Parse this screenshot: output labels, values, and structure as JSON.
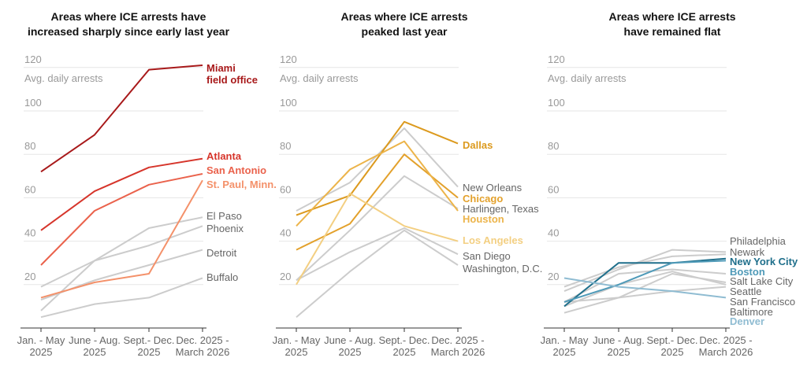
{
  "chart_data": [
    {
      "type": "line",
      "title": "Areas where ICE arrests have increased sharply since early last year",
      "title_lines": [
        "Areas where ICE arrests have",
        "increased sharply since early last year"
      ],
      "ylabel": "Avg. daily arrests",
      "ylim": [
        0,
        120
      ],
      "yticks": [
        "20",
        "40",
        "60",
        "80",
        "100",
        "120"
      ],
      "categories": [
        [
          "Jan. - May",
          "2025"
        ],
        [
          "June - Aug.",
          "2025"
        ],
        [
          "Sept.- Dec.",
          "2025"
        ],
        [
          "Dec. 2025 -",
          "March 2026"
        ]
      ],
      "grid": true,
      "series": [
        {
          "name": "Miami field office",
          "label_lines": [
            "Miami",
            "field office"
          ],
          "values": [
            72,
            89,
            119,
            121
          ],
          "color": "#a8191a",
          "highlight": true
        },
        {
          "name": "Atlanta",
          "label_lines": [
            "Atlanta"
          ],
          "values": [
            45,
            63,
            74,
            78
          ],
          "color": "#d6352b",
          "highlight": true
        },
        {
          "name": "San Antonio",
          "label_lines": [
            "San Antonio"
          ],
          "values": [
            29,
            54,
            66,
            71
          ],
          "color": "#ea624c",
          "highlight": true
        },
        {
          "name": "St. Paul, Minn.",
          "label_lines": [
            "St. Paul, Minn."
          ],
          "values": [
            14,
            21,
            25,
            68
          ],
          "color": "#f4916a",
          "highlight": true
        },
        {
          "name": "El Paso",
          "label_lines": [
            "El Paso"
          ],
          "values": [
            8,
            31,
            46,
            51
          ],
          "color": "#cccccc",
          "highlight": false
        },
        {
          "name": "Phoenix",
          "label_lines": [
            "Phoenix"
          ],
          "values": [
            19,
            31,
            38,
            47
          ],
          "color": "#cccccc",
          "highlight": false
        },
        {
          "name": "Detroit",
          "label_lines": [
            "Detroit"
          ],
          "values": [
            13,
            22,
            29,
            36
          ],
          "color": "#cccccc",
          "highlight": false
        },
        {
          "name": "Buffalo",
          "label_lines": [
            "Buffalo"
          ],
          "values": [
            5,
            11,
            14,
            23
          ],
          "color": "#cccccc",
          "highlight": false
        }
      ]
    },
    {
      "type": "line",
      "title": "Areas where ICE arrests peaked last year",
      "title_lines": [
        "Areas where ICE arrests",
        "peaked last year"
      ],
      "ylabel": "Avg. daily arrests",
      "ylim": [
        0,
        120
      ],
      "yticks": [
        "20",
        "40",
        "60",
        "80",
        "100",
        "120"
      ],
      "categories": [
        [
          "Jan. - May",
          "2025"
        ],
        [
          "June - Aug.",
          "2025"
        ],
        [
          "Sept.- Dec.",
          "2025"
        ],
        [
          "Dec. 2025 -",
          "March 2026"
        ]
      ],
      "grid": true,
      "series": [
        {
          "name": "Dallas",
          "label_lines": [
            "Dallas"
          ],
          "values": [
            52,
            61,
            95,
            85
          ],
          "color": "#dc9a1e",
          "highlight": true
        },
        {
          "name": "New Orleans",
          "label_lines": [
            "New Orleans"
          ],
          "values": [
            54,
            67,
            92,
            65
          ],
          "color": "#cccccc",
          "highlight": false
        },
        {
          "name": "Chicago",
          "label_lines": [
            "Chicago"
          ],
          "values": [
            36,
            48,
            80,
            60
          ],
          "color": "#e3a12c",
          "highlight": true
        },
        {
          "name": "Harlingen, Texas",
          "label_lines": [
            "Harlingen, Texas"
          ],
          "values": [
            22,
            45,
            70,
            55
          ],
          "color": "#cccccc",
          "highlight": false
        },
        {
          "name": "Houston",
          "label_lines": [
            "Houston"
          ],
          "values": [
            47,
            73,
            86,
            54
          ],
          "color": "#ecb44a",
          "highlight": true
        },
        {
          "name": "Los Angeles",
          "label_lines": [
            "Los Angeles"
          ],
          "values": [
            20,
            62,
            47,
            40
          ],
          "color": "#f3cf82",
          "highlight": true
        },
        {
          "name": "San Diego",
          "label_lines": [
            "San Diego"
          ],
          "values": [
            22,
            35,
            46,
            34
          ],
          "color": "#cccccc",
          "highlight": false
        },
        {
          "name": "Washington, D.C.",
          "label_lines": [
            "Washington, D.C."
          ],
          "values": [
            5,
            26,
            45,
            29
          ],
          "color": "#cccccc",
          "highlight": false
        }
      ]
    },
    {
      "type": "line",
      "title": "Areas where ICE arrests have remained flat",
      "title_lines": [
        "Areas where ICE arrests",
        "have remained flat"
      ],
      "ylabel": "Avg. daily arrests",
      "ylim": [
        0,
        120
      ],
      "yticks": [
        "20",
        "40",
        "60",
        "80",
        "100",
        "120"
      ],
      "categories": [
        [
          "Jan. - May",
          "2025"
        ],
        [
          "June - Aug.",
          "2025"
        ],
        [
          "Sept.- Dec.",
          "2025"
        ],
        [
          "Dec. 2025 -",
          "March 2026"
        ]
      ],
      "grid": true,
      "series": [
        {
          "name": "Philadelphia",
          "label_lines": [
            "Philadelphia"
          ],
          "values": [
            17,
            27,
            36,
            35
          ],
          "color": "#cccccc",
          "highlight": false
        },
        {
          "name": "Newark",
          "label_lines": [
            "Newark"
          ],
          "values": [
            19,
            28,
            33,
            34
          ],
          "color": "#cccccc",
          "highlight": false
        },
        {
          "name": "Salt Lake City",
          "label_lines": [
            "Salt Lake City"
          ],
          "values": [
            12,
            25,
            27,
            25
          ],
          "color": "#cccccc",
          "highlight": false
        },
        {
          "name": "Seattle",
          "label_lines": [
            "Seattle"
          ],
          "values": [
            7,
            14,
            25,
            21
          ],
          "color": "#cccccc",
          "highlight": false
        },
        {
          "name": "San Francisco",
          "label_lines": [
            "San Francisco"
          ],
          "values": [
            10,
            20,
            26,
            20
          ],
          "color": "#cccccc",
          "highlight": false
        },
        {
          "name": "Baltimore",
          "label_lines": [
            "Baltimore"
          ],
          "values": [
            12,
            14,
            17,
            19
          ],
          "color": "#cccccc",
          "highlight": false
        },
        {
          "name": "New York City",
          "label_lines": [
            "New York City"
          ],
          "values": [
            10,
            30,
            30,
            32
          ],
          "color": "#1f6f8b",
          "highlight": true
        },
        {
          "name": "Boston",
          "label_lines": [
            "Boston"
          ],
          "values": [
            12,
            20,
            30,
            31
          ],
          "color": "#4f9ab8",
          "highlight": true
        },
        {
          "name": "Denver",
          "label_lines": [
            "Denver"
          ],
          "values": [
            23,
            19,
            17,
            14
          ],
          "color": "#8fbcd2",
          "highlight": true
        }
      ]
    }
  ]
}
